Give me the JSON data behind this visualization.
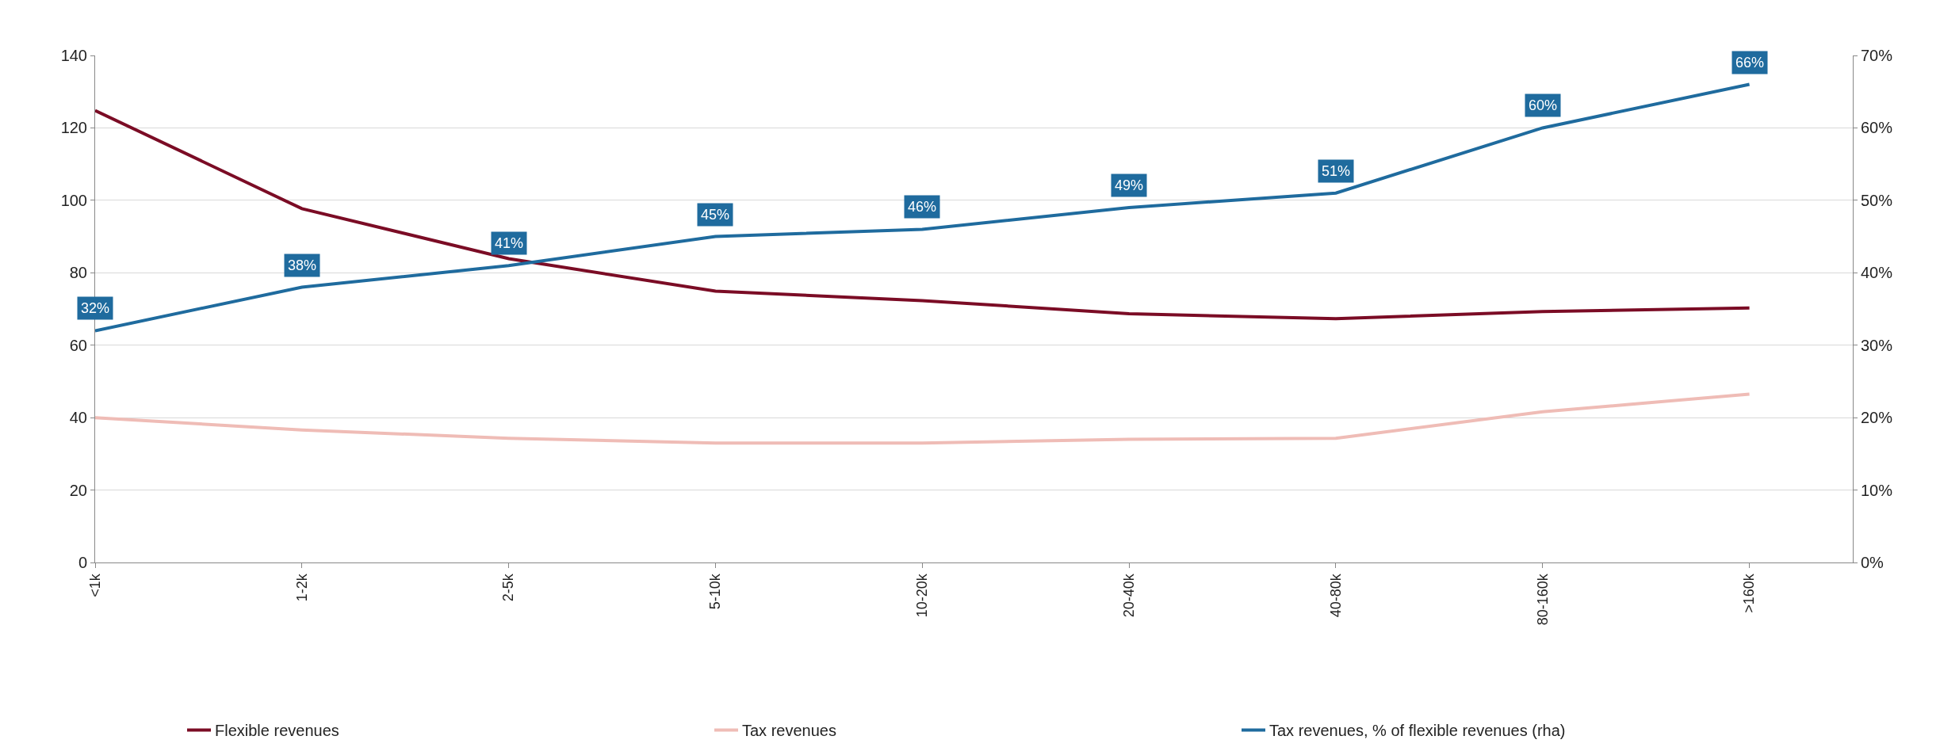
{
  "chart_data": {
    "type": "line",
    "categories": [
      "<1k",
      "1-2k",
      "2-5k",
      "5-10k",
      "10-20k",
      "20-40k",
      "40-80k",
      "80-160k",
      ">160k"
    ],
    "series": [
      {
        "name": "Flexible revenues",
        "color": "#7b0c25",
        "values": [
          124.8,
          97.7,
          83.9,
          74.9,
          72.3,
          68.7,
          67.3,
          69.3,
          70.3
        ]
      },
      {
        "name": "Tax revenues",
        "color": "#efbcb6",
        "values": [
          40,
          36.6,
          34.3,
          33,
          33,
          34,
          34.3,
          41.6,
          46.5
        ]
      },
      {
        "name": "Tax revenues, % of flexible revenues (rha)",
        "color": "#1f6b9e",
        "axis": "y2",
        "values": [
          32,
          38,
          41,
          45,
          46,
          49,
          51,
          60,
          66
        ],
        "value_labels": [
          "32%",
          "38%",
          "41%",
          "45%",
          "46%",
          "49%",
          "51%",
          "60%",
          "66%"
        ]
      }
    ],
    "ylim": [
      0,
      140
    ],
    "yticks": [
      0,
      20,
      40,
      60,
      80,
      100,
      120,
      140
    ],
    "y2lim": [
      0,
      70
    ],
    "y2ticks": [
      {
        "value": 0,
        "label": "0%"
      },
      {
        "value": 10,
        "label": "10%"
      },
      {
        "value": 20,
        "label": "20%"
      },
      {
        "value": 30,
        "label": "30%"
      },
      {
        "value": 40,
        "label": "40%"
      },
      {
        "value": 50,
        "label": "50%"
      },
      {
        "value": 60,
        "label": "60%"
      },
      {
        "value": 70,
        "label": "70%"
      }
    ],
    "grid": "y",
    "legend": "bottom",
    "marker": "none",
    "line_style": "solid"
  }
}
